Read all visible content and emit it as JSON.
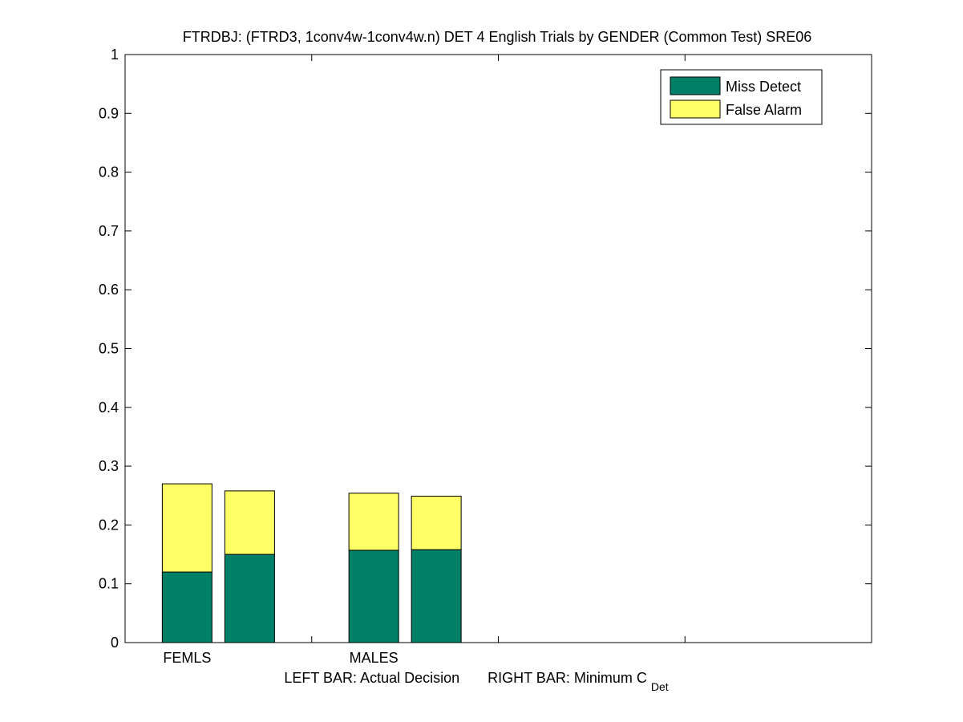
{
  "chart_data": {
    "type": "bar",
    "stacked": true,
    "title": "FTRDBJ: (FTRD3, 1conv4w-1conv4w.n) DET 4 English Trials by GENDER (Common Test) SRE06",
    "categories": [
      "FEMLS",
      "MALES"
    ],
    "bar_variants": [
      "Actual Decision",
      "Minimum C_Det"
    ],
    "series": [
      {
        "name": "Miss Detect",
        "color": "#008066",
        "values": [
          [
            0.12,
            0.15
          ],
          [
            0.157,
            0.158
          ]
        ]
      },
      {
        "name": "False Alarm",
        "color": "#ffff66",
        "values": [
          [
            0.15,
            0.108
          ],
          [
            0.097,
            0.091
          ]
        ]
      }
    ],
    "xlabel_parts": {
      "left": "LEFT BAR: Actual Decision",
      "right": "RIGHT BAR: Minimum C",
      "subscript": "Det"
    },
    "ylim": [
      0,
      1
    ],
    "yticks": [
      "0",
      "0.1",
      "0.2",
      "0.3",
      "0.4",
      "0.5",
      "0.6",
      "0.7",
      "0.8",
      "0.9",
      "1"
    ],
    "legend_position": "top-right",
    "grid": false
  }
}
